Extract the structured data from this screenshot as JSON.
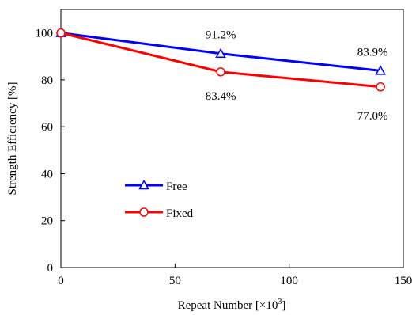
{
  "chart_data": {
    "type": "line",
    "x": [
      0,
      70,
      140
    ],
    "series": [
      {
        "name": "Free",
        "values": [
          100,
          91.2,
          83.9
        ],
        "color": "#0000ff",
        "marker": "triangle",
        "labels": [
          null,
          "91.2%",
          "83.9%"
        ]
      },
      {
        "name": "Fixed",
        "values": [
          100,
          83.4,
          77.0
        ],
        "color": "#ff0000",
        "marker": "circle",
        "labels": [
          null,
          "83.4%",
          "77.0%"
        ]
      }
    ],
    "xlabel": "Repeat Number [×10",
    "xlabel_exponent": "3",
    "xlabel_close": "]",
    "ylabel": "Strength Efficiency [%]",
    "xlim": [
      0,
      150
    ],
    "ylim": [
      0,
      110
    ],
    "xticks": [
      0,
      50,
      100,
      150
    ],
    "yticks": [
      0,
      20,
      40,
      60,
      80,
      100
    ],
    "xtick_labels": [
      "0",
      "50",
      "100",
      "150"
    ],
    "ytick_labels": [
      "0",
      "20",
      "40",
      "60",
      "80",
      "100"
    ],
    "grid": false,
    "legend_position": "lower-left"
  }
}
